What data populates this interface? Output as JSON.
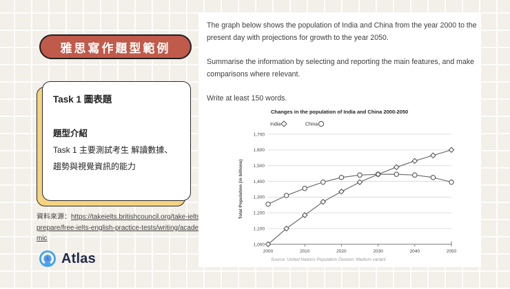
{
  "slide": {
    "badge_label": "雅思寫作題型範例",
    "card": {
      "title": "Task 1 圖表題",
      "section_heading": "題型介紹",
      "body": "Task 1 主要測試考生 解讀數據、趨勢與視覺資訊的能力"
    },
    "source": {
      "label": "資料來源：",
      "url": "https://takeielts.britishcouncil.org/take-ielts/prepare/free-ielts-english-practice-tests/writing/academic"
    },
    "logo_text": "Atlas"
  },
  "question": {
    "para1": "The graph below shows the population of India and China from the year 2000 to the present day with projections for growth to the year 2050.",
    "para2": "Summarise the information by selecting and reporting the main features, and make comparisons where relevant.",
    "para3": "Write at least 150 words."
  },
  "chart_data": {
    "type": "line",
    "title": "Changes in the population of India and China 2000-2050",
    "ylabel": "Total Population (in billions)",
    "source_note": "Source: United Nations Population Division: Medium variant",
    "x": [
      2000,
      2005,
      2010,
      2015,
      2020,
      2025,
      2030,
      2035,
      2040,
      2045,
      2050
    ],
    "series": [
      {
        "name": "China",
        "marker": "circle",
        "values": [
          1255,
          1310,
          1355,
          1395,
          1425,
          1440,
          1445,
          1445,
          1440,
          1425,
          1395
        ]
      },
      {
        "name": "India",
        "marker": "diamond",
        "values": [
          1000,
          1100,
          1185,
          1270,
          1335,
          1395,
          1445,
          1490,
          1530,
          1565,
          1600
        ]
      }
    ],
    "legend_order": [
      "India",
      "China"
    ],
    "legend_position": "top-left",
    "ylim": [
      1000,
      1700
    ],
    "ytick_step": 100,
    "xticks": [
      2000,
      2010,
      2020,
      2030,
      2040,
      2050
    ],
    "grid": "horizontal"
  },
  "colors": {
    "badge_bg": "#c05a4b",
    "card_shadow": "#f6d37e",
    "background": "#f3efe9",
    "logo_blue": "#47a4e9",
    "logo_needle": "#7b61e6",
    "logo_navy": "#1d2947",
    "chart_line": "#6e6e6e"
  }
}
